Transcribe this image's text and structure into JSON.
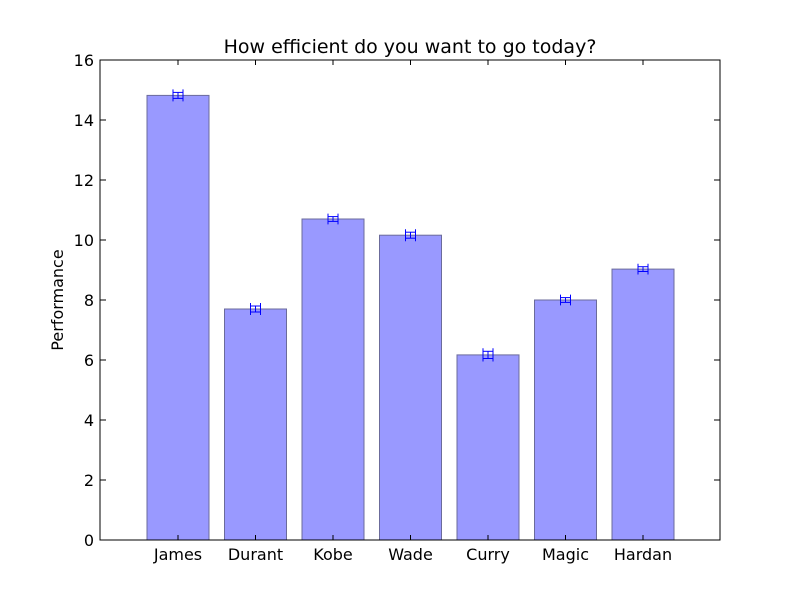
{
  "chart_data": {
    "type": "bar",
    "title": "How efficient do you want to go today?",
    "xlabel": "",
    "ylabel": "Performance",
    "categories": [
      "James",
      "Durant",
      "Kobe",
      "Wade",
      "Curry",
      "Magic",
      "Hardan"
    ],
    "values": [
      14.82,
      7.7,
      10.7,
      10.16,
      6.17,
      8.0,
      9.03
    ],
    "errors": [
      0.1,
      0.1,
      0.08,
      0.1,
      0.12,
      0.08,
      0.08
    ],
    "ylim": [
      0,
      16
    ],
    "yticks": [
      0,
      2,
      4,
      6,
      8,
      10,
      12,
      14,
      16
    ],
    "grid": false,
    "legend": "none"
  },
  "colors": {
    "bar_fill": "#9999ff",
    "bar_edge": "#6b6b9b",
    "error_bar": "#0000ff",
    "axis": "#000000"
  }
}
